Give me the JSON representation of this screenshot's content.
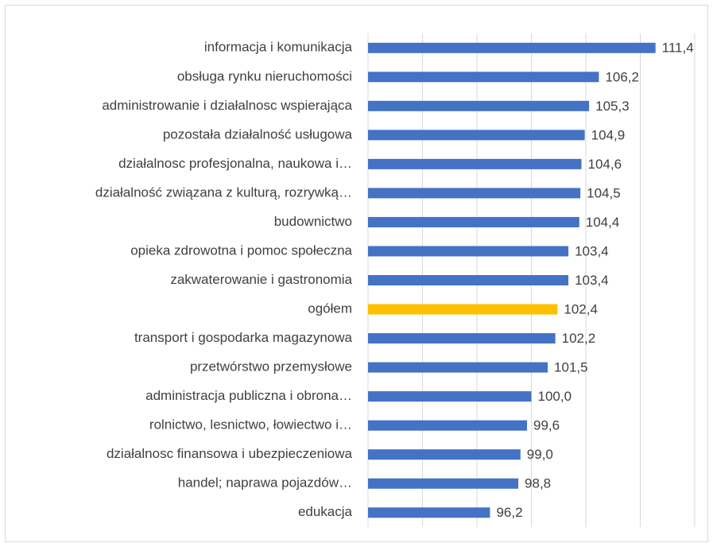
{
  "chart_data": {
    "type": "barh",
    "categories": [
      "informacja i komunikacja",
      "obsługa rynku nieruchomości",
      "administrowanie i działalnosc wspierająca",
      "pozostała działalność usługowa",
      "działalnosc profesjonalna, naukowa i…",
      "działalność związana z kulturą, rozrywką…",
      "budownictwo",
      "opieka zdrowotna i pomoc społeczna",
      "zakwaterowanie i gastronomia",
      "ogółem",
      "transport i gospodarka magazynowa",
      "przetwórstwo przemysłowe",
      "administracja publiczna i obrona…",
      "rolnictwo, lesnictwo, łowiectwo i…",
      "działalnosc finansowa i ubezpieczeniowa",
      "handel; naprawa pojazdów…",
      "edukacja"
    ],
    "values": [
      111.4,
      106.2,
      105.3,
      104.9,
      104.6,
      104.5,
      104.4,
      103.4,
      103.4,
      102.4,
      102.2,
      101.5,
      100.0,
      99.6,
      99.0,
      98.8,
      96.2
    ],
    "value_labels": [
      "111,4",
      "106,2",
      "105,3",
      "104,9",
      "104,6",
      "104,5",
      "104,4",
      "103,4",
      "103,4",
      "102,4",
      "102,2",
      "101,5",
      "100,0",
      "99,6",
      "99,0",
      "98,8",
      "96,2"
    ],
    "colors": [
      "#4472c4",
      "#4472c4",
      "#4472c4",
      "#4472c4",
      "#4472c4",
      "#4472c4",
      "#4472c4",
      "#4472c4",
      "#4472c4",
      "#ffc000",
      "#4472c4",
      "#4472c4",
      "#4472c4",
      "#4472c4",
      "#4472c4",
      "#4472c4",
      "#4472c4"
    ],
    "xlim": [
      85,
      115
    ],
    "xticks": [
      85,
      90,
      95,
      100,
      105,
      110,
      115
    ],
    "grid": true
  }
}
